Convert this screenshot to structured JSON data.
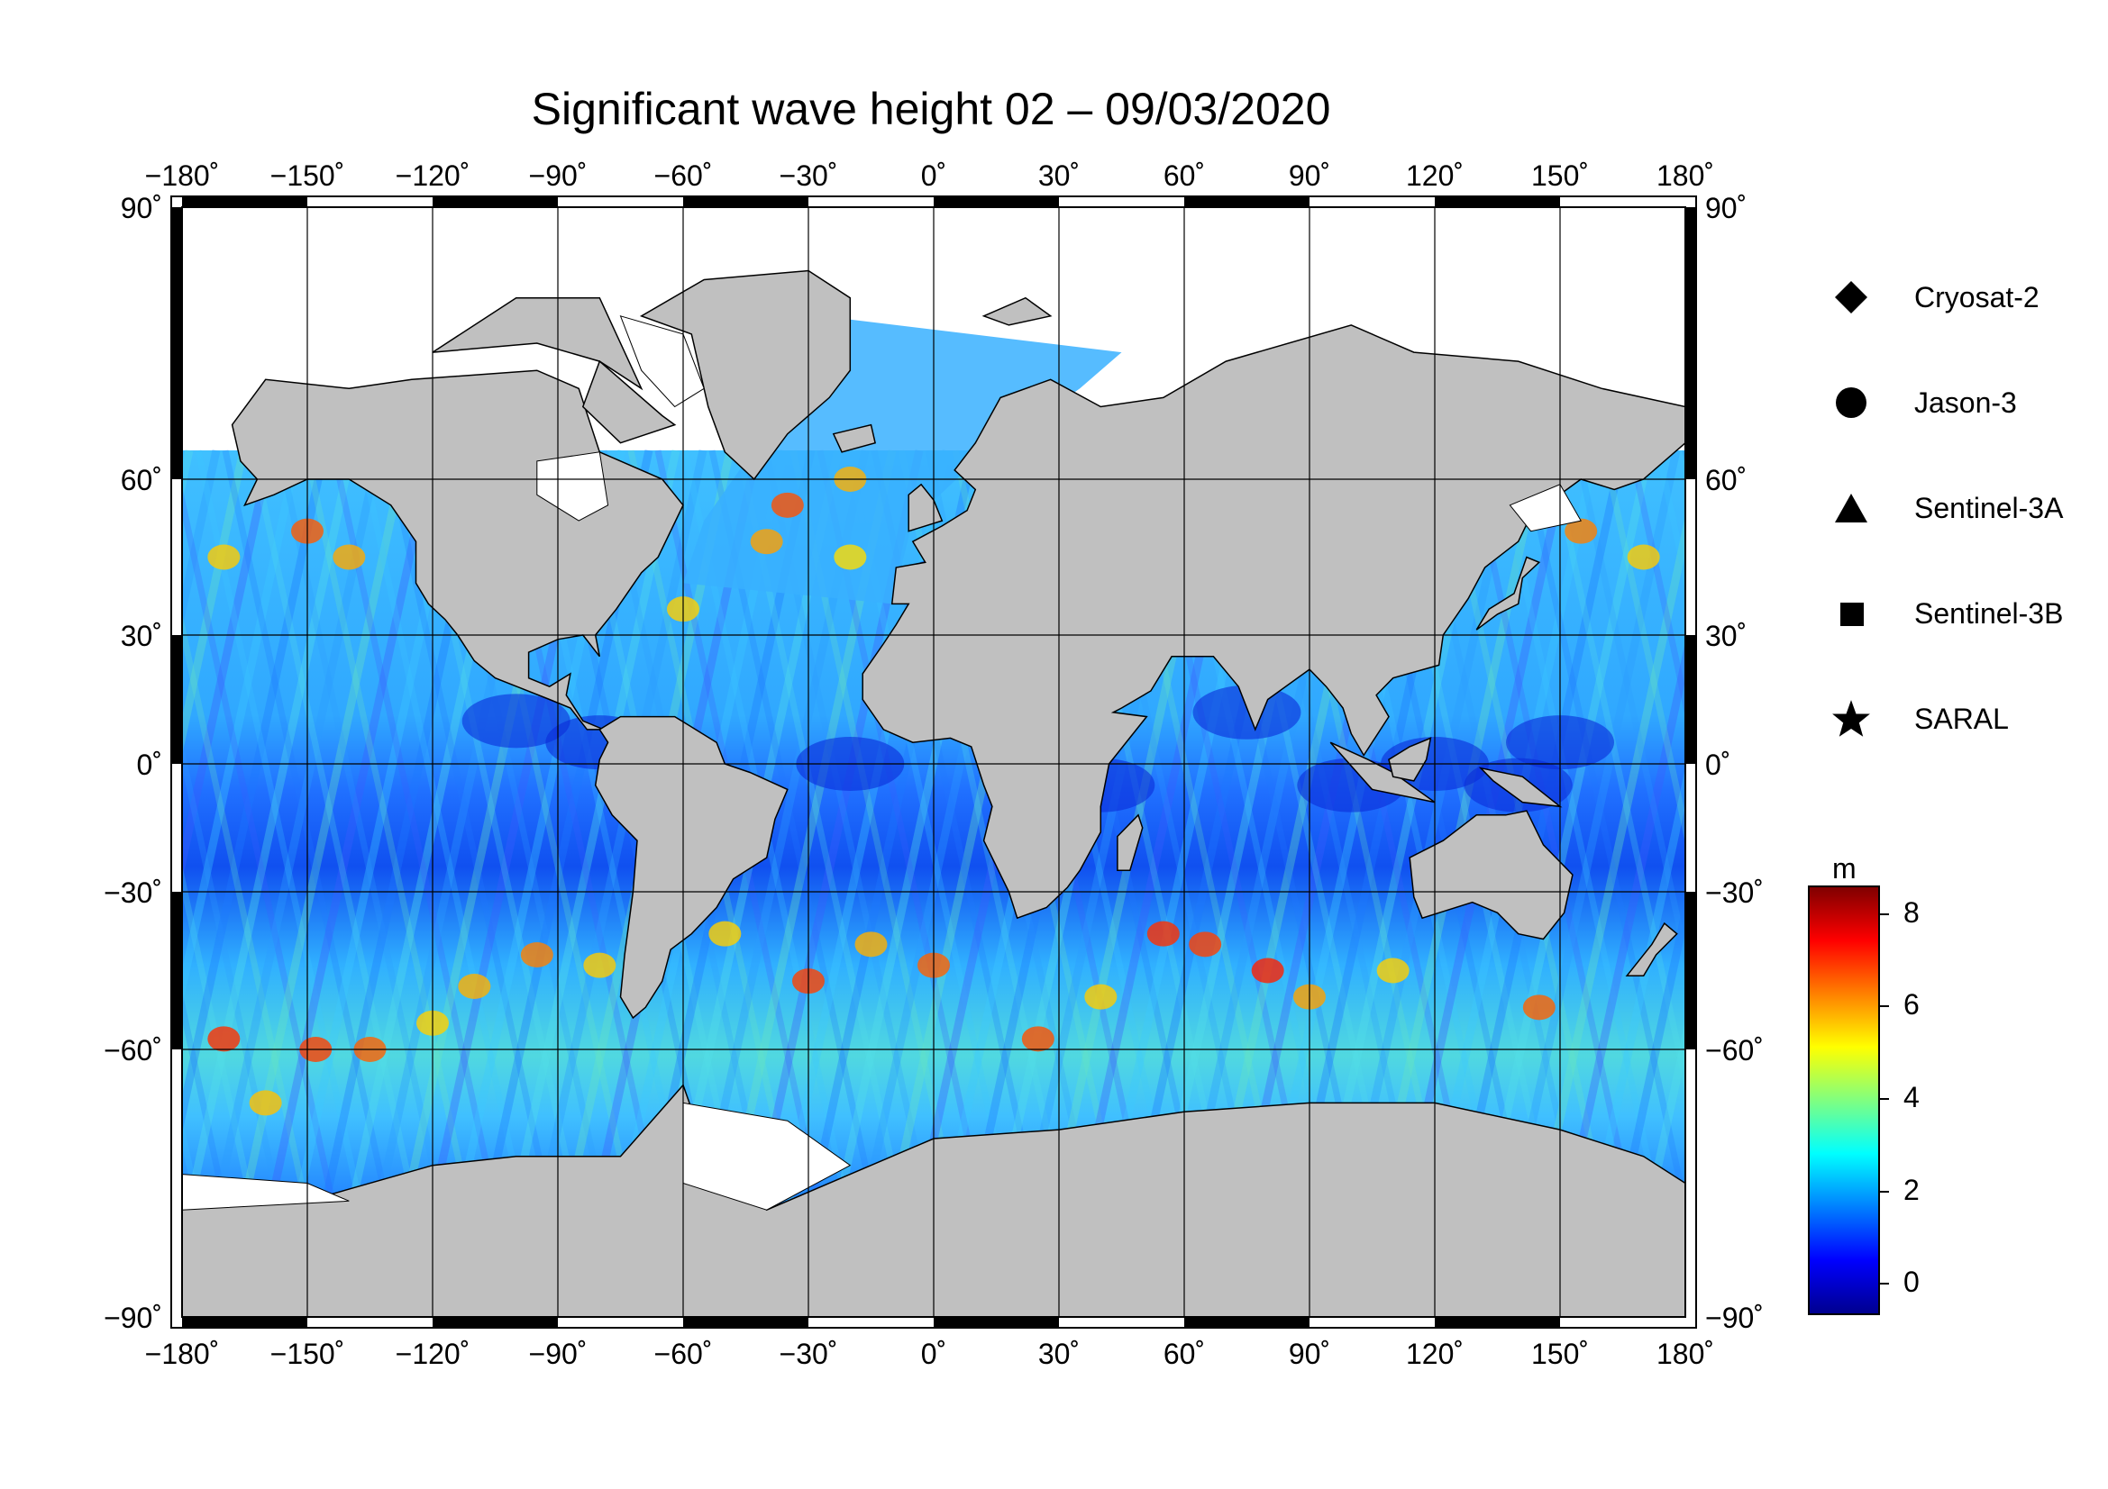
{
  "title": "Significant wave height 02 – 09/03/2020",
  "map": {
    "lon_ticks": [
      "−180˚",
      "−150˚",
      "−120˚",
      "−90˚",
      "−60˚",
      "−30˚",
      "0˚",
      "30˚",
      "60˚",
      "90˚",
      "120˚",
      "150˚",
      "180˚"
    ],
    "lat_ticks_left": [
      "90˚",
      "60˚",
      "30˚",
      "0˚",
      "−30˚",
      "−60˚",
      "−90˚"
    ],
    "lat_ticks_right": [
      "90˚",
      "60˚",
      "30˚",
      "0˚",
      "−30˚",
      "−60˚",
      "−90˚"
    ],
    "land_color": "#c0c0c0",
    "ice_color": "#ffffff"
  },
  "legend": {
    "items": [
      {
        "label": "Cryosat-2",
        "symbol": "diamond"
      },
      {
        "label": "Jason-3",
        "symbol": "circle"
      },
      {
        "label": "Sentinel-3A",
        "symbol": "triangle"
      },
      {
        "label": "Sentinel-3B",
        "symbol": "square"
      },
      {
        "label": "SARAL",
        "symbol": "star"
      }
    ]
  },
  "colorbar": {
    "unit": "m",
    "ticks": [
      "8",
      "6",
      "4",
      "2",
      "0"
    ],
    "min": -0.7,
    "max": 8.6,
    "colors": [
      "#00008f",
      "#0000ff",
      "#0080ff",
      "#00ffff",
      "#80ff80",
      "#ffff00",
      "#ff8000",
      "#ff0000",
      "#800000"
    ]
  }
}
